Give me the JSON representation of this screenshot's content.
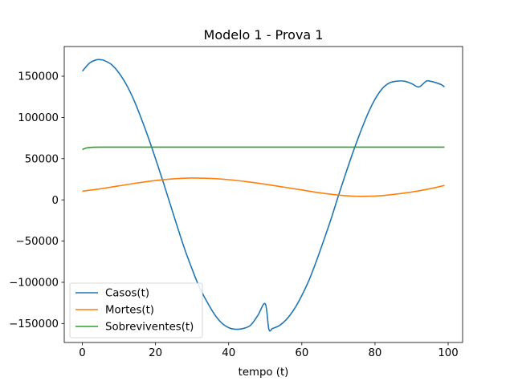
{
  "chart_data": {
    "type": "line",
    "title": "Modelo 1 - Prova 1",
    "xlabel": "tempo (t)",
    "ylabel": "",
    "xlim": [
      -4.95,
      103.95
    ],
    "ylim": [
      -173000,
      186000
    ],
    "xticks": [
      0,
      20,
      40,
      60,
      80,
      100
    ],
    "yticks": [
      -150000,
      -100000,
      -50000,
      0,
      50000,
      100000,
      150000
    ],
    "grid": false,
    "legend_position": "lower-left",
    "series": [
      {
        "name": "Casos(t)",
        "color": "#1f77b4",
        "x": [
          0,
          2,
          4,
          5,
          6,
          8,
          10,
          12,
          14,
          16,
          18,
          20,
          22,
          24,
          26,
          28,
          30,
          32,
          34,
          36,
          38,
          40,
          42,
          44,
          46,
          48,
          50,
          51,
          52,
          54,
          56,
          58,
          60,
          62,
          64,
          66,
          68,
          70,
          72,
          74,
          76,
          78,
          80,
          82,
          84,
          86,
          88,
          90,
          92,
          94,
          95,
          96,
          98,
          99
        ],
        "y": [
          156000,
          166000,
          170000,
          170000,
          169000,
          164000,
          154000,
          140000,
          122000,
          100000,
          76000,
          50000,
          23000,
          -5000,
          -33000,
          -60000,
          -84000,
          -106000,
          -123000,
          -138000,
          -149000,
          -155000,
          -157000,
          -156000,
          -152000,
          -140000,
          -126000,
          -157000,
          -156000,
          -152000,
          -144000,
          -132000,
          -116000,
          -97000,
          -74000,
          -49000,
          -23000,
          5000,
          32000,
          58000,
          82000,
          104000,
          122000,
          135000,
          142000,
          144000,
          144000,
          141000,
          137000,
          144000,
          144000,
          143000,
          140000,
          137000
        ]
      },
      {
        "name": "Mortes(t)",
        "color": "#ff7f0e",
        "x": [
          0,
          5,
          10,
          15,
          20,
          25,
          30,
          35,
          40,
          45,
          50,
          55,
          60,
          65,
          70,
          75,
          80,
          85,
          90,
          95,
          99
        ],
        "y": [
          10500,
          13500,
          17000,
          20500,
          23500,
          25500,
          26500,
          26000,
          24500,
          22000,
          19000,
          15500,
          12000,
          8500,
          5800,
          4300,
          4600,
          6600,
          9500,
          13500,
          17500
        ]
      },
      {
        "name": "Sobreviventes(t)",
        "color": "#2ca02c",
        "x": [
          0,
          1,
          2,
          3,
          5,
          10,
          20,
          40,
          60,
          80,
          99
        ],
        "y": [
          61000,
          62800,
          63500,
          63800,
          64000,
          64000,
          64000,
          64000,
          64000,
          64000,
          64000
        ]
      }
    ]
  }
}
